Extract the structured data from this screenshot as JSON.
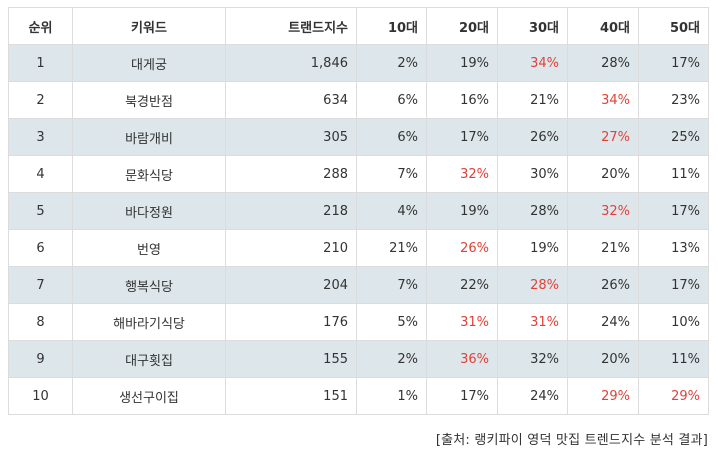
{
  "table": {
    "headers": [
      "순위",
      "키워드",
      "트랜드지수",
      "10대",
      "20대",
      "30대",
      "40대",
      "50대"
    ],
    "rows": [
      {
        "rank": "1",
        "keyword": "대게궁",
        "index": "1,846",
        "a10": "2%",
        "a20": "19%",
        "a30": "34%",
        "a40": "28%",
        "a50": "17%"
      },
      {
        "rank": "2",
        "keyword": "북경반점",
        "index": "634",
        "a10": "6%",
        "a20": "16%",
        "a30": "21%",
        "a40": "34%",
        "a50": "23%"
      },
      {
        "rank": "3",
        "keyword": "바람개비",
        "index": "305",
        "a10": "6%",
        "a20": "17%",
        "a30": "26%",
        "a40": "27%",
        "a50": "25%"
      },
      {
        "rank": "4",
        "keyword": "문화식당",
        "index": "288",
        "a10": "7%",
        "a20": "32%",
        "a30": "30%",
        "a40": "20%",
        "a50": "11%"
      },
      {
        "rank": "5",
        "keyword": "바다정원",
        "index": "218",
        "a10": "4%",
        "a20": "19%",
        "a30": "28%",
        "a40": "32%",
        "a50": "17%"
      },
      {
        "rank": "6",
        "keyword": "번영",
        "index": "210",
        "a10": "21%",
        "a20": "26%",
        "a30": "19%",
        "a40": "21%",
        "a50": "13%"
      },
      {
        "rank": "7",
        "keyword": "행복식당",
        "index": "204",
        "a10": "7%",
        "a20": "22%",
        "a30": "28%",
        "a40": "26%",
        "a50": "17%"
      },
      {
        "rank": "8",
        "keyword": "해바라기식당",
        "index": "176",
        "a10": "5%",
        "a20": "31%",
        "a30": "31%",
        "a40": "24%",
        "a50": "10%"
      },
      {
        "rank": "9",
        "keyword": "대구횟집",
        "index": "155",
        "a10": "2%",
        "a20": "36%",
        "a30": "32%",
        "a40": "20%",
        "a50": "11%"
      },
      {
        "rank": "10",
        "keyword": "생선구이집",
        "index": "151",
        "a10": "1%",
        "a20": "17%",
        "a30": "24%",
        "a40": "29%",
        "a50": "29%"
      }
    ]
  },
  "source": "[출처: 랭키파이 영덕 맛집 트렌드지수 분석 결과]",
  "colors": {
    "highlight_text": "#e0423a",
    "row_band": "#dde6ea",
    "border": "#dcdcdc"
  }
}
